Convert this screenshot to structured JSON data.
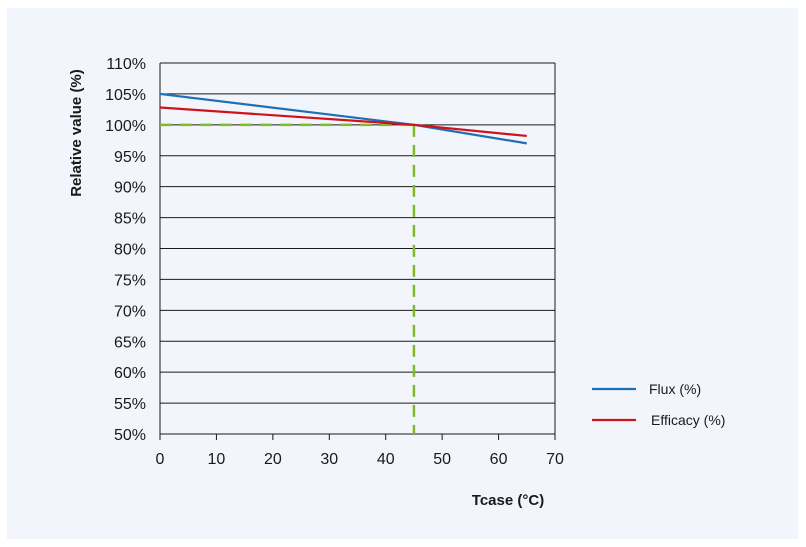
{
  "chart_data": {
    "type": "line",
    "xlabel": "Tcase (°C)",
    "ylabel": "Relative value (%)",
    "xlim": [
      0,
      70
    ],
    "ylim": [
      50,
      110
    ],
    "x_ticks": [
      "0",
      "10",
      "20",
      "30",
      "40",
      "50",
      "60",
      "70"
    ],
    "y_ticks": [
      "110%",
      "105%",
      "100%",
      "95%",
      "90%",
      "85%",
      "80%",
      "75%",
      "70%",
      "65%",
      "60%",
      "55%",
      "50%"
    ],
    "grid": "horizontal",
    "legend_position": "right",
    "series": [
      {
        "name": "Flux (%)",
        "color": "#1f6fb5",
        "x": [
          0,
          45,
          65
        ],
        "y": [
          105,
          100,
          97
        ]
      },
      {
        "name": "Efficacy (%)",
        "color": "#d0121b",
        "x": [
          0,
          45,
          65
        ],
        "y": [
          102.8,
          100,
          98.2
        ]
      }
    ],
    "reference_lines": {
      "color": "#7fba2c",
      "x": 45,
      "y": 100
    }
  }
}
